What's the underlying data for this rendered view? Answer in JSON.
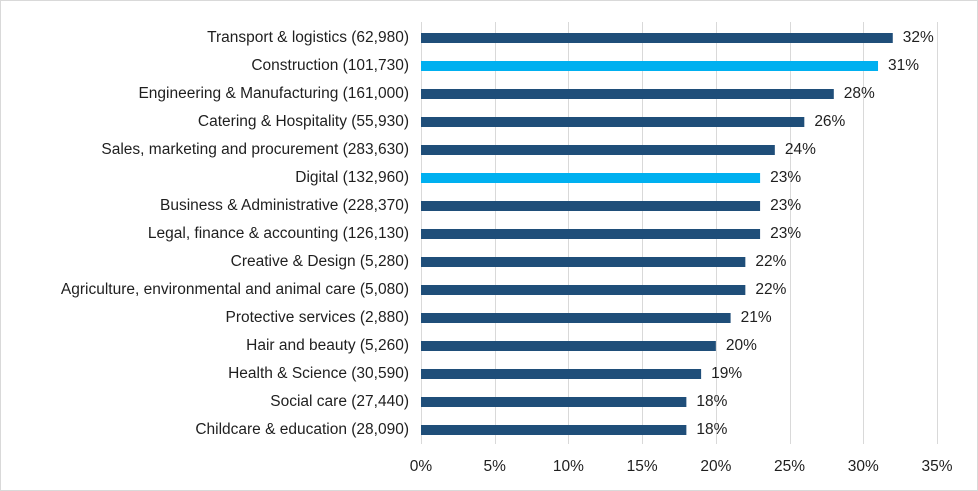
{
  "chart_data": {
    "type": "bar",
    "orientation": "horizontal",
    "title": "",
    "xlabel": "",
    "ylabel": "",
    "xlim": [
      0,
      35
    ],
    "x_ticks": [
      "0%",
      "5%",
      "10%",
      "15%",
      "20%",
      "25%",
      "30%",
      "35%"
    ],
    "grid": true,
    "legend": "none",
    "categories": [
      "Transport & logistics (62,980)",
      "Construction (101,730)",
      "Engineering & Manufacturing (161,000)",
      "Catering & Hospitality (55,930)",
      "Sales, marketing and procurement (283,630)",
      "Digital (132,960)",
      "Business & Administrative (228,370)",
      "Legal, finance & accounting (126,130)",
      "Creative & Design (5,280)",
      "Agriculture, environmental and animal care (5,080)",
      "Protective services (2,880)",
      "Hair and beauty (5,260)",
      "Health & Science (30,590)",
      "Social care (27,440)",
      "Childcare & education (28,090)"
    ],
    "values": [
      32,
      31,
      28,
      26,
      24,
      23,
      23,
      23,
      22,
      22,
      21,
      20,
      19,
      18,
      18
    ],
    "value_labels": [
      "32%",
      "31%",
      "28%",
      "26%",
      "24%",
      "23%",
      "23%",
      "23%",
      "22%",
      "22%",
      "21%",
      "20%",
      "19%",
      "18%",
      "18%"
    ],
    "bar_colors": [
      "#1f4e79",
      "#00b0f0",
      "#1f4e79",
      "#1f4e79",
      "#1f4e79",
      "#00b0f0",
      "#1f4e79",
      "#1f4e79",
      "#1f4e79",
      "#1f4e79",
      "#1f4e79",
      "#1f4e79",
      "#1f4e79",
      "#1f4e79",
      "#1f4e79"
    ]
  }
}
